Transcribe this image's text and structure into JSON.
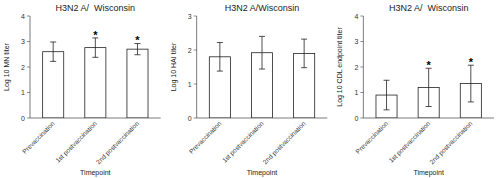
{
  "chart_data": [
    {
      "type": "bar",
      "title": "H3N2 A/  Wisconsin",
      "xlabel": "Timepoint",
      "ylabel": "Log 10 MN titer",
      "categories": [
        "Prevaccination",
        "1st postvaccination",
        "2nd postvaccination"
      ],
      "values": [
        2.6,
        2.76,
        2.7
      ],
      "errors": [
        0.38,
        0.38,
        0.22
      ],
      "annotations": [
        null,
        "*",
        "*"
      ],
      "color": "#ffffff",
      "ylim": [
        0,
        4
      ],
      "yticks": [
        0,
        1,
        2,
        3,
        4
      ],
      "grid": false
    },
    {
      "type": "bar",
      "title": "H3N2 A/Wisconsin",
      "xlabel": "Timepoint",
      "ylabel": "Log 10 HAI titer",
      "categories": [
        "Prevaccination",
        "1st postvaccination",
        "2nd postvaccination"
      ],
      "values": [
        1.8,
        1.92,
        1.9
      ],
      "errors": [
        0.42,
        0.48,
        0.42
      ],
      "annotations": [
        null,
        null,
        null
      ],
      "color": "#ffffff",
      "ylim": [
        0,
        3
      ],
      "yticks": [
        0,
        1,
        2,
        3
      ],
      "grid": false
    },
    {
      "type": "bar",
      "title": "H3N2 A/  Wisconsin",
      "xlabel": "Timepoint",
      "ylabel": "Log 10 CDL endpoint titer",
      "categories": [
        "Prevaccination",
        "1st postvaccination",
        "2nd postvaccination"
      ],
      "values": [
        0.9,
        1.2,
        1.35
      ],
      "errors": [
        0.58,
        0.75,
        0.72
      ],
      "annotations": [
        null,
        "*",
        "*"
      ],
      "color": "#ffffff",
      "ylim": [
        0,
        4
      ],
      "yticks": [
        0,
        1,
        2,
        3,
        4
      ],
      "grid": false
    }
  ]
}
